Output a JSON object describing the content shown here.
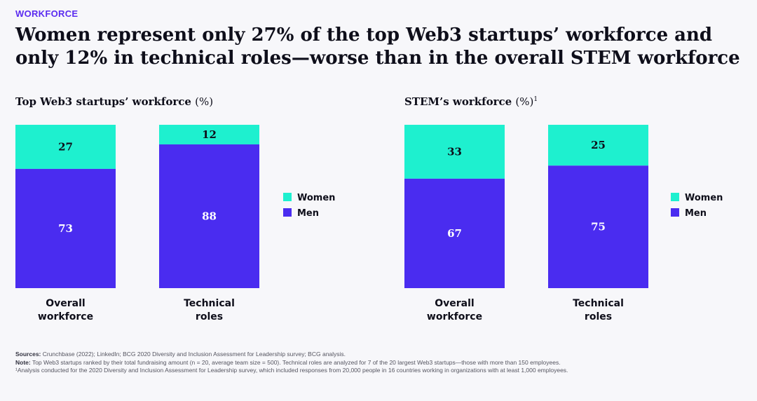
{
  "eyebrow": "WORKFORCE",
  "headline": "Women represent only 27% of the top Web3 startups’ workforce and only 12% in technical roles—worse than in the overall STEM workforce",
  "colors": {
    "women": "#1ef0cf",
    "men": "#4a2cf0",
    "text_on_women": "#0e0e1a",
    "text_on_men": "#ffffff",
    "accent": "#5b2cf0"
  },
  "chart_data": [
    {
      "type": "bar",
      "stacked": true,
      "title": "Top Web3 startups’ workforce",
      "unit": "(%)",
      "footnote_mark": "",
      "categories": [
        "Overall workforce",
        "Technical roles"
      ],
      "category_lines": [
        [
          "Overall",
          "workforce"
        ],
        [
          "Technical",
          "roles"
        ]
      ],
      "series": [
        {
          "name": "Women",
          "values": [
            27,
            12
          ]
        },
        {
          "name": "Men",
          "values": [
            73,
            88
          ]
        }
      ],
      "ylim": [
        0,
        100
      ],
      "legend": [
        "Women",
        "Men"
      ],
      "legend_position": "right"
    },
    {
      "type": "bar",
      "stacked": true,
      "title": "STEM’s workforce",
      "unit": "(%)",
      "footnote_mark": "1",
      "categories": [
        "Overall workforce",
        "Technical roles"
      ],
      "category_lines": [
        [
          "Overall",
          "workforce"
        ],
        [
          "Technical",
          "roles"
        ]
      ],
      "series": [
        {
          "name": "Women",
          "values": [
            33,
            25
          ]
        },
        {
          "name": "Men",
          "values": [
            67,
            75
          ]
        }
      ],
      "ylim": [
        0,
        100
      ],
      "legend": [
        "Women",
        "Men"
      ],
      "legend_position": "right"
    }
  ],
  "footer": {
    "sources_label": "Sources:",
    "sources_text": " Crunchbase (2022); LinkedIn; BCG 2020 Diversity and Inclusion Assessment for Leadership survey; BCG analysis.",
    "note_label": "Note:",
    "note_text": " Top Web3 startups ranked by their total fundraising amount (n = 20, average team size = 500). Technical roles are analyzed for 7 of the 20 largest Web3 startups—those with more than 150 employees.",
    "footnote_text": "¹Analysis conducted for the 2020 Diversity and Inclusion Assessment for Leadership survey, which included responses from 20,000 people in 16 countries working in organizations with at least 1,000 employees."
  }
}
